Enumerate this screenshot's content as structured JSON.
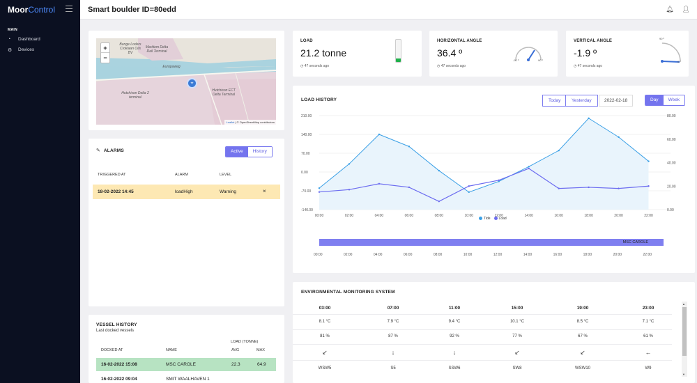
{
  "app": {
    "logo_bold": "Moor",
    "logo_light": "Control"
  },
  "sidebar": {
    "section": "MAIN",
    "items": [
      {
        "label": "Dashboard",
        "icon": "gauge-icon"
      },
      {
        "label": "Devices",
        "icon": "gear-icon"
      }
    ]
  },
  "header": {
    "title": "Smart boulder ID=80edd"
  },
  "map": {
    "zoom_in": "+",
    "zoom_out": "−",
    "labels": [
      "Hutchison Delta 2 terminal",
      "Hutchison ECT Delta Terminal",
      "Bunge Loders Croklaan Oils BV",
      "Maritiem Delta Rail Terminal",
      "Europaweg"
    ],
    "attribution_link": "Leaflet",
    "attribution_text": "| © OpenStreetMap contributors"
  },
  "alarms": {
    "title": "ALARMS",
    "tabs": [
      "Active",
      "History"
    ],
    "columns": [
      "TRIGGERED AT",
      "ALARM",
      "LEVEL"
    ],
    "rows": [
      {
        "triggered_at": "18-02-2022 14:45",
        "alarm": "loadHigh",
        "level": "Warning",
        "dismiss": "×"
      }
    ]
  },
  "stats": {
    "load": {
      "title": "LOAD",
      "value": "21.2 tonne",
      "time": "47 seconds ago",
      "level_fraction": 0.15
    },
    "horizontal": {
      "title": "HORIZONTAL ANGLE",
      "value": "36.4 º",
      "time": "47 seconds ago",
      "gauge_min": "-90 º",
      "gauge_max": "90 º"
    },
    "vertical": {
      "title": "VERTICAL ANGLE",
      "value": "-1.9 º",
      "time": "47 seconds ago",
      "gauge_min": "90 º",
      "gauge_max": "0 º"
    }
  },
  "load_history": {
    "title": "LOAD HISTORY",
    "buttons": [
      "Today",
      "Yesterday"
    ],
    "date": "2022-02-18",
    "range": [
      "Day",
      "Week"
    ],
    "vessel_label": "MSC CAROLE"
  },
  "chart_data": {
    "type": "line",
    "x": [
      "00:00",
      "02:00",
      "04:00",
      "06:00",
      "08:00",
      "10:00",
      "12:00",
      "14:00",
      "16:00",
      "18:00",
      "20:00",
      "22:00"
    ],
    "y_left_ticks": [
      "210.00",
      "140.00",
      "70.00",
      "0.00",
      "-70.00",
      "-140.00"
    ],
    "y_right_ticks": [
      "80.00",
      "60.00",
      "40.00",
      "20.00",
      "0.00"
    ],
    "legend": [
      "Tide",
      "Load"
    ],
    "colors": {
      "tide": "#3ba0e6",
      "load": "#6c6cf0"
    },
    "series": [
      {
        "name": "Tide",
        "axis": "left",
        "values": [
          -60,
          30,
          140,
          95,
          5,
          -75,
          -35,
          20,
          80,
          200,
          130,
          40
        ]
      },
      {
        "name": "Load",
        "axis": "right",
        "values": [
          15,
          17,
          22,
          19,
          7,
          20,
          25,
          35,
          18,
          19,
          18,
          20
        ]
      }
    ]
  },
  "timeline": {
    "ticks": [
      "00:00",
      "02:00",
      "04:00",
      "06:00",
      "08:00",
      "10:00",
      "12:00",
      "14:00",
      "16:00",
      "18:00",
      "20:00",
      "22:00"
    ]
  },
  "env": {
    "title": "ENVIRONMENTAL MONITORING SYSTEM",
    "times": [
      "03:00",
      "07:00",
      "11:00",
      "15:00",
      "19:00",
      "23:00"
    ],
    "temps": [
      "8.1 °C",
      "7.9 °C",
      "9.4 °C",
      "10.1 °C",
      "8.5 °C",
      "7.1 °C"
    ],
    "humidity": [
      "81 %",
      "87 %",
      "92 %",
      "77 %",
      "67 %",
      "61 %"
    ],
    "arrows": [
      "↙",
      "↓",
      "↓",
      "↙",
      "↙",
      "←"
    ],
    "winds": [
      "WSW5",
      "S5",
      "SSW6",
      "SW8",
      "WSW10",
      "W9"
    ]
  },
  "vessel_history": {
    "title": "VESSEL HISTORY",
    "subtitle": "Last docked vessels",
    "group": "LOAD (TONNE)",
    "columns": [
      "DOCKED AT",
      "NAME",
      "AVG",
      "MAX"
    ],
    "rows": [
      {
        "docked": "16-02-2022 15:08",
        "name": "MSC CAROLE",
        "avg": "22.3",
        "max": "64.9"
      },
      {
        "docked": "16-02-2022 09:04",
        "name": "SMIT WAALHAVEN 1",
        "avg": "",
        "max": ""
      }
    ]
  }
}
